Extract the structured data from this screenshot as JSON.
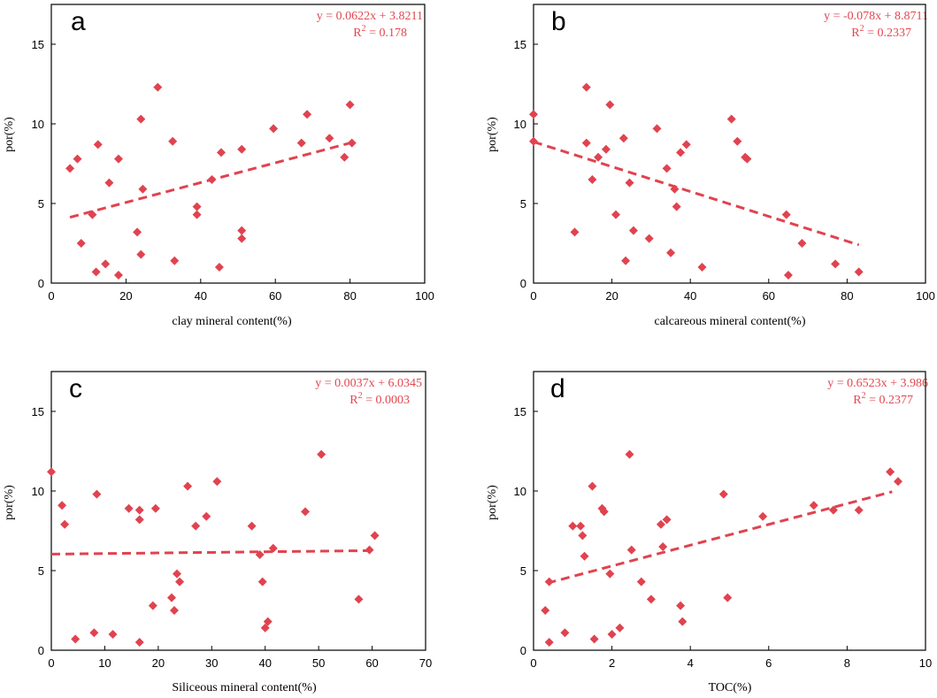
{
  "chart_data": [
    {
      "type": "scatter",
      "panel_label": "a",
      "xlabel": "clay mineral content(%)",
      "ylabel": "por(%)",
      "xlim": [
        0,
        100
      ],
      "ylim": [
        0,
        17.5
      ],
      "xticks": [
        0,
        20,
        40,
        60,
        80,
        100
      ],
      "yticks": [
        0,
        5,
        10,
        15
      ],
      "equation": "y = 0.0622x + 3.8211",
      "r2_prefix": "R",
      "r2_sup": "2",
      "r2_value": " = 0.178",
      "trend": {
        "slope": 0.0622,
        "intercept": 3.8211,
        "x_range": [
          5,
          80
        ]
      },
      "color": "#e0434f",
      "points": [
        [
          5,
          7.2
        ],
        [
          7,
          7.8
        ],
        [
          8,
          2.5
        ],
        [
          11,
          4.3
        ],
        [
          12,
          0.7
        ],
        [
          12.5,
          8.7
        ],
        [
          14.5,
          1.2
        ],
        [
          15.5,
          6.3
        ],
        [
          18,
          0.5
        ],
        [
          18,
          7.8
        ],
        [
          23,
          3.2
        ],
        [
          24,
          10.3
        ],
        [
          24,
          1.8
        ],
        [
          24.5,
          5.9
        ],
        [
          28.5,
          12.3
        ],
        [
          32.5,
          8.9
        ],
        [
          33,
          1.4
        ],
        [
          39,
          4.3
        ],
        [
          39,
          4.8
        ],
        [
          43,
          6.5
        ],
        [
          45,
          1
        ],
        [
          45.5,
          8.2
        ],
        [
          51,
          2.8
        ],
        [
          51,
          3.3
        ],
        [
          51,
          8.4
        ],
        [
          59.5,
          9.7
        ],
        [
          67,
          8.8
        ],
        [
          68.5,
          10.6
        ],
        [
          74.5,
          9.1
        ],
        [
          78.5,
          7.9
        ],
        [
          80,
          11.2
        ],
        [
          80.5,
          8.8
        ]
      ]
    },
    {
      "type": "scatter",
      "panel_label": "b",
      "xlabel": "calcareous mineral content(%)",
      "ylabel": "por(%)",
      "xlim": [
        0,
        100
      ],
      "ylim": [
        0,
        17.5
      ],
      "xticks": [
        0,
        20,
        40,
        60,
        80,
        100
      ],
      "yticks": [
        0,
        5,
        10,
        15
      ],
      "equation": "y = -0.078x + 8.8711",
      "r2_prefix": "R",
      "r2_sup": "2",
      "r2_value": " = 0.2337",
      "trend": {
        "slope": -0.078,
        "intercept": 8.8711,
        "x_range": [
          0,
          83
        ]
      },
      "color": "#e0434f",
      "points": [
        [
          0,
          10.6
        ],
        [
          0,
          8.9
        ],
        [
          10.5,
          3.2
        ],
        [
          13.5,
          12.3
        ],
        [
          13.5,
          8.8
        ],
        [
          15,
          6.5
        ],
        [
          16.5,
          7.9
        ],
        [
          18.5,
          8.4
        ],
        [
          19.5,
          11.2
        ],
        [
          21,
          4.3
        ],
        [
          23,
          9.1
        ],
        [
          23.5,
          1.4
        ],
        [
          24.5,
          6.3
        ],
        [
          25.5,
          3.3
        ],
        [
          29.5,
          2.8
        ],
        [
          31.5,
          9.7
        ],
        [
          34,
          7.2
        ],
        [
          35,
          1.9
        ],
        [
          36,
          5.9
        ],
        [
          36.5,
          4.8
        ],
        [
          37.5,
          8.2
        ],
        [
          39,
          8.7
        ],
        [
          43,
          1
        ],
        [
          50.5,
          10.3
        ],
        [
          52,
          8.9
        ],
        [
          54,
          7.9
        ],
        [
          54.5,
          7.8
        ],
        [
          64.5,
          4.3
        ],
        [
          65,
          0.5
        ],
        [
          68.5,
          2.5
        ],
        [
          77,
          1.2
        ],
        [
          83,
          0.7
        ]
      ]
    },
    {
      "type": "scatter",
      "panel_label": "c",
      "xlabel": "Siliceous mineral content(%)",
      "ylabel": "por(%)",
      "xlim": [
        0,
        70
      ],
      "ylim": [
        0,
        17.5
      ],
      "xticks": [
        0,
        10,
        20,
        30,
        40,
        50,
        60,
        70
      ],
      "yticks": [
        0,
        5,
        10,
        15
      ],
      "equation": "y = 0.0037x + 6.0345",
      "r2_prefix": "R",
      "r2_sup": "2",
      "r2_value": " = 0.0003",
      "trend": {
        "slope": 0.0037,
        "intercept": 6.0345,
        "x_range": [
          0,
          60.5
        ]
      },
      "color": "#e0434f",
      "points": [
        [
          0,
          11.2
        ],
        [
          2,
          9.1
        ],
        [
          2.5,
          7.9
        ],
        [
          4.5,
          0.7
        ],
        [
          8,
          1.1
        ],
        [
          8.5,
          9.8
        ],
        [
          11.5,
          1
        ],
        [
          14.5,
          8.9
        ],
        [
          16.5,
          8.8
        ],
        [
          16.5,
          8.2
        ],
        [
          16.5,
          0.5
        ],
        [
          19,
          2.8
        ],
        [
          19.5,
          8.9
        ],
        [
          22.5,
          3.3
        ],
        [
          23,
          2.5
        ],
        [
          23.5,
          4.8
        ],
        [
          24,
          4.3
        ],
        [
          25.5,
          10.3
        ],
        [
          27,
          7.8
        ],
        [
          29,
          8.4
        ],
        [
          31,
          10.6
        ],
        [
          37.5,
          7.8
        ],
        [
          39,
          6
        ],
        [
          39.5,
          4.3
        ],
        [
          40,
          1.4
        ],
        [
          40.5,
          1.8
        ],
        [
          41.5,
          6.4
        ],
        [
          47.5,
          8.7
        ],
        [
          50.5,
          12.3
        ],
        [
          57.5,
          3.2
        ],
        [
          59.5,
          6.3
        ],
        [
          60.5,
          7.2
        ]
      ]
    },
    {
      "type": "scatter",
      "panel_label": "d",
      "xlabel": "TOC(%)",
      "ylabel": "por(%)",
      "xlim": [
        0,
        10
      ],
      "ylim": [
        0,
        17.5
      ],
      "xticks": [
        0,
        2,
        4,
        6,
        8,
        10
      ],
      "yticks": [
        0,
        5,
        10,
        15
      ],
      "equation": "y = 0.6523x + 3.986",
      "r2_prefix": "R",
      "r2_sup": "2",
      "r2_value": " = 0.2377",
      "trend": {
        "slope": 0.6523,
        "intercept": 3.986,
        "x_range": [
          0.35,
          9.15
        ]
      },
      "color": "#e0434f",
      "points": [
        [
          0.3,
          2.5
        ],
        [
          0.4,
          4.3
        ],
        [
          0.4,
          0.5
        ],
        [
          0.8,
          1.1
        ],
        [
          1,
          7.8
        ],
        [
          1.2,
          7.8
        ],
        [
          1.25,
          7.2
        ],
        [
          1.3,
          5.9
        ],
        [
          1.5,
          10.3
        ],
        [
          1.55,
          0.7
        ],
        [
          1.75,
          8.9
        ],
        [
          1.8,
          8.7
        ],
        [
          1.95,
          4.8
        ],
        [
          2,
          1
        ],
        [
          2.2,
          1.4
        ],
        [
          2.45,
          12.3
        ],
        [
          2.5,
          6.3
        ],
        [
          2.75,
          4.3
        ],
        [
          3,
          3.2
        ],
        [
          3.25,
          7.9
        ],
        [
          3.3,
          6.5
        ],
        [
          3.4,
          8.2
        ],
        [
          3.75,
          2.8
        ],
        [
          3.8,
          1.8
        ],
        [
          4.85,
          9.8
        ],
        [
          4.95,
          3.3
        ],
        [
          5.85,
          8.4
        ],
        [
          7.15,
          9.1
        ],
        [
          7.65,
          8.8
        ],
        [
          8.3,
          8.8
        ],
        [
          9.1,
          11.2
        ],
        [
          9.3,
          10.6
        ]
      ]
    }
  ]
}
